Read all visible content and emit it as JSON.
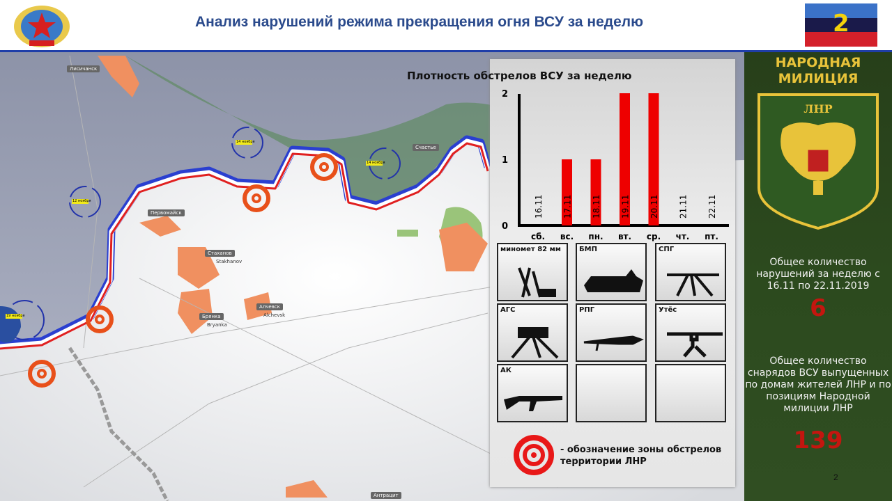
{
  "header": {
    "title": "Анализ нарушений режима прекращения огня ВСУ за неделю",
    "badge_number": "2"
  },
  "colors": {
    "accent_blue": "#1f3ea8",
    "bar_red": "#ee0000",
    "panel_green": "#2c4a1e",
    "gold": "#e8c33a",
    "number_red": "#c4160f"
  },
  "map": {
    "cities": [
      {
        "name": "Лисичанск"
      },
      {
        "name": "Первомайск"
      },
      {
        "name": "Стаханов",
        "latin": "Stakhanov"
      },
      {
        "name": "Брянка",
        "latin": "Bryanka"
      },
      {
        "name": "Алчевск",
        "latin": "Alchevsk"
      },
      {
        "name": "Счастье"
      },
      {
        "name": "Антрацит"
      }
    ],
    "date_tags": [
      "14 ноября",
      "14 ноября",
      "12 ноября",
      "19 ноября"
    ]
  },
  "chart_data": {
    "type": "bar",
    "title": "Плотность обстрелов ВСУ за неделю",
    "categories": [
      "сб.",
      "вс.",
      "пн.",
      "вт.",
      "ср.",
      "чт.",
      "пт."
    ],
    "dates": [
      "16.11",
      "17.11",
      "18.11",
      "19.11",
      "20.11",
      "21.11",
      "22.11"
    ],
    "values": [
      0,
      1,
      1,
      2,
      2,
      0,
      0
    ],
    "yticks": [
      "0",
      "1",
      "2"
    ],
    "ylim": [
      0,
      2
    ],
    "grid": false
  },
  "weapons": [
    "миномет 82 мм",
    "БМП",
    "СПГ",
    "АГС",
    "РПГ",
    "Утёс",
    "АК"
  ],
  "legend": {
    "text": "- обозначение зоны обстрелов территории ЛНР"
  },
  "side": {
    "title_line1": "НАРОДНАЯ",
    "title_line2": "МИЛИЦИЯ",
    "emblem_text": "ЛНР",
    "violations_label": "Общее количество нарушений за неделю с  16.11 по 22.11.2019",
    "violations_value": "6",
    "shells_label": "Общее количество снарядов ВСУ выпущенных по домам жителей ЛНР и по позициям Народной милиции ЛНР",
    "shells_value": "139"
  },
  "page_number": "2"
}
